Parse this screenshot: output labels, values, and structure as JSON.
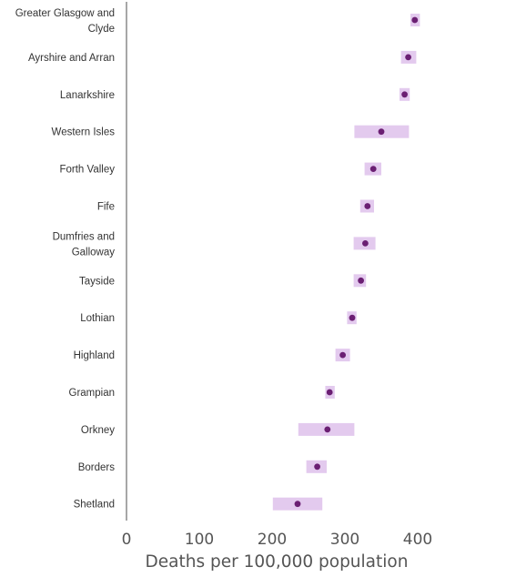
{
  "chart_data": {
    "type": "scatter",
    "title": "",
    "xlabel": "Deaths per 100,000 population",
    "ylabel": "",
    "xlim": [
      0,
      430
    ],
    "xticks": [
      "0",
      "100",
      "200",
      "300",
      "400"
    ],
    "xtick_values": [
      0,
      100,
      200,
      300,
      400
    ],
    "grid": false,
    "legend": "none",
    "categories": [
      [
        "Greater Glasgow and",
        "Clyde"
      ],
      [
        "Ayrshire and Arran"
      ],
      [
        "Lanarkshire"
      ],
      [
        "Western Isles"
      ],
      [
        "Forth Valley"
      ],
      [
        "Fife"
      ],
      [
        "Dumfries and",
        "Galloway"
      ],
      [
        "Tayside"
      ],
      [
        "Lothian"
      ],
      [
        "Highland"
      ],
      [
        "Grampian"
      ],
      [
        "Orkney"
      ],
      [
        "Borders"
      ],
      [
        "Shetland"
      ]
    ],
    "values": [
      396,
      387,
      382,
      350,
      339,
      331,
      328,
      322,
      310,
      297,
      279,
      276,
      262,
      235
    ],
    "ci_low": [
      390,
      377,
      375,
      313,
      327,
      321,
      312,
      312,
      303,
      287,
      273,
      236,
      247,
      201
    ],
    "ci_high": [
      403,
      398,
      389,
      388,
      350,
      340,
      342,
      329,
      316,
      307,
      286,
      313,
      275,
      269
    ],
    "colors": {
      "point": "#6b1f73",
      "interval": "#e3caee",
      "axis": "#8a8a8a"
    }
  }
}
